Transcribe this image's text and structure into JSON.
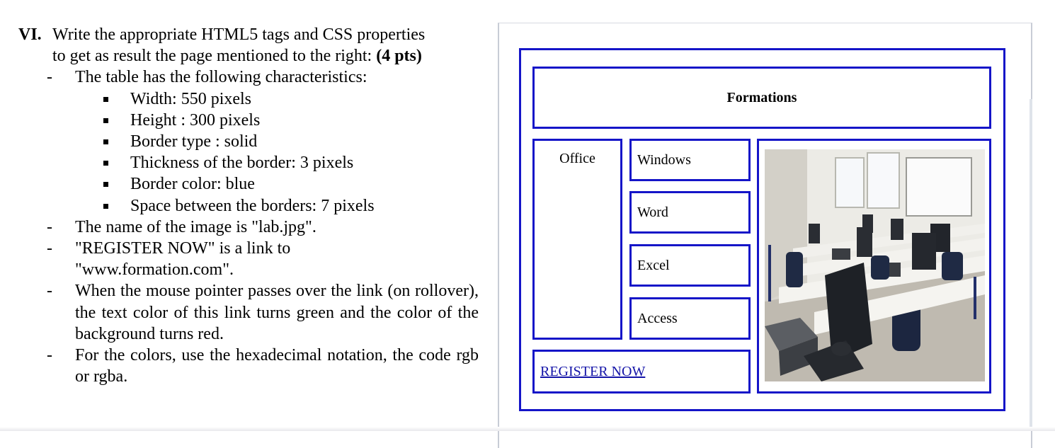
{
  "question": {
    "number": "VI.",
    "intro_line1": "Write the appropriate HTML5 tags and CSS properties",
    "intro_line2": "to get as result the page mentioned to the right:",
    "points": "(4 pts)",
    "bullet_dash": "-",
    "table_intro": "The table has the following characteristics:",
    "characteristics": [
      "Width: 550 pixels",
      "Height : 300 pixels",
      "Border type : solid",
      "Thickness of the border: 3 pixels",
      "Border color: blue",
      "Space between the borders: 7 pixels"
    ],
    "image_name": "The name of the image is \"lab.jpg\".",
    "link_line1": "\"REGISTER NOW\" is a link to",
    "link_line2": "\"www.formation.com\".",
    "rollover": "When the mouse pointer passes over the link (on rollover), the text color of this link turns green and the color of the background turns red.",
    "colors": "For the colors, use the hexadecimal notation, the code rgb or rgba."
  },
  "preview": {
    "title": "Formations",
    "office": "Office",
    "windows": "Windows",
    "word": "Word",
    "excel": "Excel",
    "access": "Access",
    "register_link": "REGISTER NOW",
    "image_alt": "lab.jpg",
    "border_color": "#1515c8",
    "link_color": "#1515a8"
  }
}
